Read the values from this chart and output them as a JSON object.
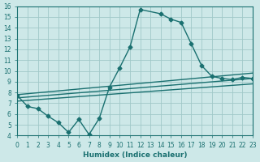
{
  "xlabel": "Humidex (Indice chaleur)",
  "bg_color": "#cde8e8",
  "line_color": "#1a7070",
  "grid_color": "#a0c8c8",
  "xlim": [
    0,
    23
  ],
  "ylim": [
    4,
    16
  ],
  "xticks": [
    0,
    1,
    2,
    3,
    4,
    5,
    6,
    7,
    8,
    9,
    10,
    11,
    12,
    13,
    14,
    15,
    16,
    17,
    18,
    19,
    20,
    21,
    22,
    23
  ],
  "yticks": [
    4,
    5,
    6,
    7,
    8,
    9,
    10,
    11,
    12,
    13,
    14,
    15,
    16
  ],
  "main_x": [
    0,
    1,
    2,
    3,
    4,
    5,
    6,
    7,
    8,
    9,
    10,
    11,
    12,
    14,
    15,
    16,
    17,
    18,
    19,
    20,
    21,
    22,
    23
  ],
  "main_y": [
    7.7,
    6.7,
    6.5,
    5.8,
    5.2,
    4.3,
    5.5,
    4.1,
    5.6,
    8.5,
    10.3,
    12.2,
    15.7,
    15.3,
    14.8,
    14.5,
    12.5,
    10.5,
    9.5,
    9.3,
    9.2,
    9.4,
    9.3
  ],
  "line1_x": [
    0,
    23
  ],
  "line1_y": [
    7.8,
    9.8
  ],
  "line2_x": [
    0,
    23
  ],
  "line2_y": [
    7.5,
    9.3
  ],
  "line3_x": [
    0,
    23
  ],
  "line3_y": [
    7.2,
    8.8
  ]
}
